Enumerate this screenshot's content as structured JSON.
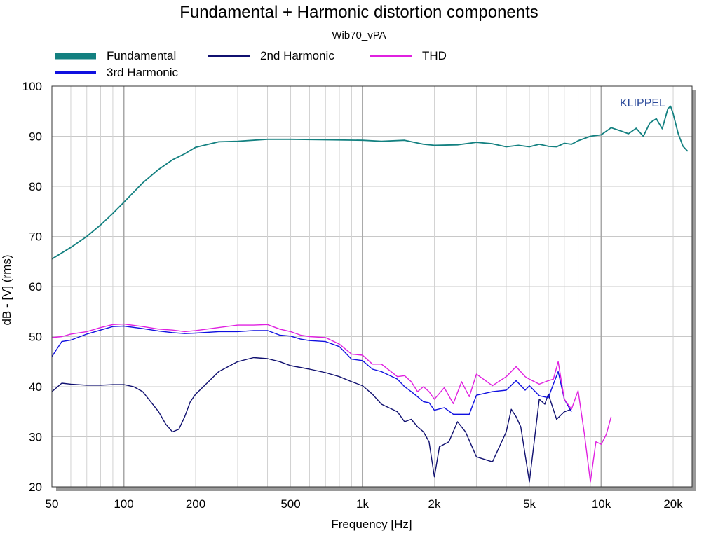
{
  "chart_data": {
    "type": "line",
    "title": "Fundamental + Harmonic distortion components",
    "subtitle": "Wib70_vPA",
    "xlabel": "Frequency [Hz]",
    "ylabel": "dB - [V]  (rms)",
    "x_scale": "log",
    "xlim": [
      50,
      24000
    ],
    "ylim": [
      20,
      100
    ],
    "x_ticks": [
      {
        "value": 50,
        "label": "50"
      },
      {
        "value": 100,
        "label": "100"
      },
      {
        "value": 200,
        "label": "200"
      },
      {
        "value": 500,
        "label": "500"
      },
      {
        "value": 1000,
        "label": "1k"
      },
      {
        "value": 2000,
        "label": "2k"
      },
      {
        "value": 5000,
        "label": "5k"
      },
      {
        "value": 10000,
        "label": "10k"
      },
      {
        "value": 20000,
        "label": "20k"
      }
    ],
    "y_ticks": [
      20,
      30,
      40,
      50,
      60,
      70,
      80,
      90,
      100
    ],
    "grid": true,
    "legend_placement": "top",
    "brand": "KLIPPEL",
    "series": [
      {
        "name": "Fundamental",
        "color": "#138080",
        "x": [
          50,
          60,
          70,
          80,
          90,
          100,
          120,
          140,
          160,
          180,
          200,
          250,
          300,
          400,
          500,
          700,
          1000,
          1200,
          1500,
          1800,
          2000,
          2500,
          3000,
          3500,
          4000,
          4500,
          5000,
          5500,
          6000,
          6500,
          7000,
          7500,
          8000,
          9000,
          10000,
          11000,
          12000,
          13000,
          14000,
          15000,
          16000,
          17000,
          18000,
          19000,
          19500,
          20000,
          21000,
          22000,
          23000
        ],
        "y": [
          65.5,
          67.8,
          70.0,
          72.3,
          74.6,
          76.8,
          80.7,
          83.4,
          85.3,
          86.5,
          87.8,
          88.9,
          89.0,
          89.4,
          89.4,
          89.3,
          89.2,
          89.0,
          89.2,
          88.4,
          88.2,
          88.3,
          88.8,
          88.5,
          87.9,
          88.2,
          87.9,
          88.4,
          88.0,
          87.9,
          88.6,
          88.4,
          89.1,
          90.0,
          90.3,
          91.7,
          91.1,
          90.5,
          91.6,
          90.0,
          92.7,
          93.5,
          91.5,
          95.5,
          96.0,
          94.5,
          90.5,
          88.0,
          87.0
        ]
      },
      {
        "name": "2nd Harmonic",
        "color": "#101070",
        "x": [
          50,
          55,
          60,
          70,
          80,
          90,
          100,
          110,
          120,
          140,
          150,
          160,
          170,
          180,
          190,
          200,
          250,
          300,
          350,
          400,
          450,
          500,
          600,
          700,
          800,
          900,
          1000,
          1100,
          1200,
          1400,
          1500,
          1600,
          1700,
          1800,
          1900,
          2000,
          2100,
          2300,
          2500,
          2700,
          3000,
          3500,
          4000,
          4200,
          4400,
          4600,
          5000,
          5500,
          5800,
          6000,
          6500,
          7000,
          7500
        ],
        "y": [
          39.0,
          40.7,
          40.5,
          40.3,
          40.3,
          40.4,
          40.4,
          40.0,
          39.0,
          35.0,
          32.5,
          31.0,
          31.5,
          34.0,
          37.0,
          38.5,
          43.0,
          45.0,
          45.8,
          45.6,
          45.0,
          44.2,
          43.5,
          42.8,
          42.0,
          41.0,
          40.2,
          38.5,
          36.5,
          35.0,
          33.0,
          33.5,
          32.0,
          31.0,
          29.0,
          22.0,
          28.0,
          29.0,
          33.0,
          31.0,
          26.0,
          25.0,
          31.0,
          35.5,
          34.0,
          32.0,
          21.0,
          37.5,
          36.5,
          38.5,
          33.5,
          35.0,
          35.5
        ]
      },
      {
        "name": "3rd Harmonic",
        "color": "#1010E0",
        "x": [
          50,
          55,
          60,
          70,
          80,
          90,
          100,
          120,
          140,
          160,
          180,
          200,
          250,
          300,
          350,
          400,
          450,
          500,
          550,
          600,
          700,
          800,
          900,
          1000,
          1100,
          1200,
          1400,
          1500,
          1600,
          1700,
          1800,
          1900,
          2000,
          2200,
          2400,
          2600,
          2800,
          3000,
          3500,
          4000,
          4400,
          4800,
          5000,
          5500,
          6000,
          6300,
          6600,
          7000,
          7500
        ],
        "y": [
          46.0,
          49.0,
          49.3,
          50.5,
          51.3,
          52.0,
          52.1,
          51.6,
          51.1,
          50.8,
          50.6,
          50.7,
          51.0,
          51.0,
          51.2,
          51.2,
          50.3,
          50.1,
          49.5,
          49.2,
          49.0,
          48.0,
          45.5,
          45.2,
          43.5,
          43.0,
          41.5,
          40.0,
          39.0,
          38.0,
          37.0,
          36.8,
          35.3,
          35.8,
          34.5,
          34.5,
          34.5,
          38.3,
          39.0,
          39.3,
          41.2,
          39.3,
          40.2,
          38.2,
          37.8,
          40.5,
          43.0,
          37.5,
          35.0
        ]
      },
      {
        "name": "THD",
        "color": "#E020E0",
        "x": [
          50,
          55,
          60,
          70,
          80,
          90,
          100,
          120,
          140,
          160,
          180,
          200,
          250,
          300,
          350,
          400,
          450,
          500,
          550,
          600,
          700,
          800,
          900,
          1000,
          1100,
          1200,
          1400,
          1500,
          1600,
          1700,
          1800,
          1900,
          2000,
          2200,
          2400,
          2600,
          2800,
          3000,
          3500,
          4000,
          4400,
          4800,
          5000,
          5500,
          6000,
          6300,
          6600,
          7000,
          7500,
          8000,
          8500,
          9000,
          9500,
          10000,
          10500,
          11000
        ],
        "y": [
          49.8,
          50.0,
          50.5,
          51.0,
          51.8,
          52.4,
          52.5,
          52.0,
          51.5,
          51.3,
          51.0,
          51.2,
          51.8,
          52.3,
          52.3,
          52.4,
          51.5,
          51.0,
          50.3,
          50.0,
          49.8,
          48.5,
          46.5,
          46.3,
          44.5,
          44.5,
          42.0,
          42.2,
          41.0,
          39.0,
          40.0,
          39.0,
          37.5,
          39.8,
          36.6,
          41.0,
          38.0,
          42.5,
          40.2,
          42.0,
          44.0,
          42.0,
          41.5,
          40.5,
          41.2,
          41.5,
          45.0,
          37.5,
          35.5,
          39.2,
          30.5,
          21.0,
          29.0,
          28.5,
          30.5,
          34.0
        ]
      }
    ]
  }
}
